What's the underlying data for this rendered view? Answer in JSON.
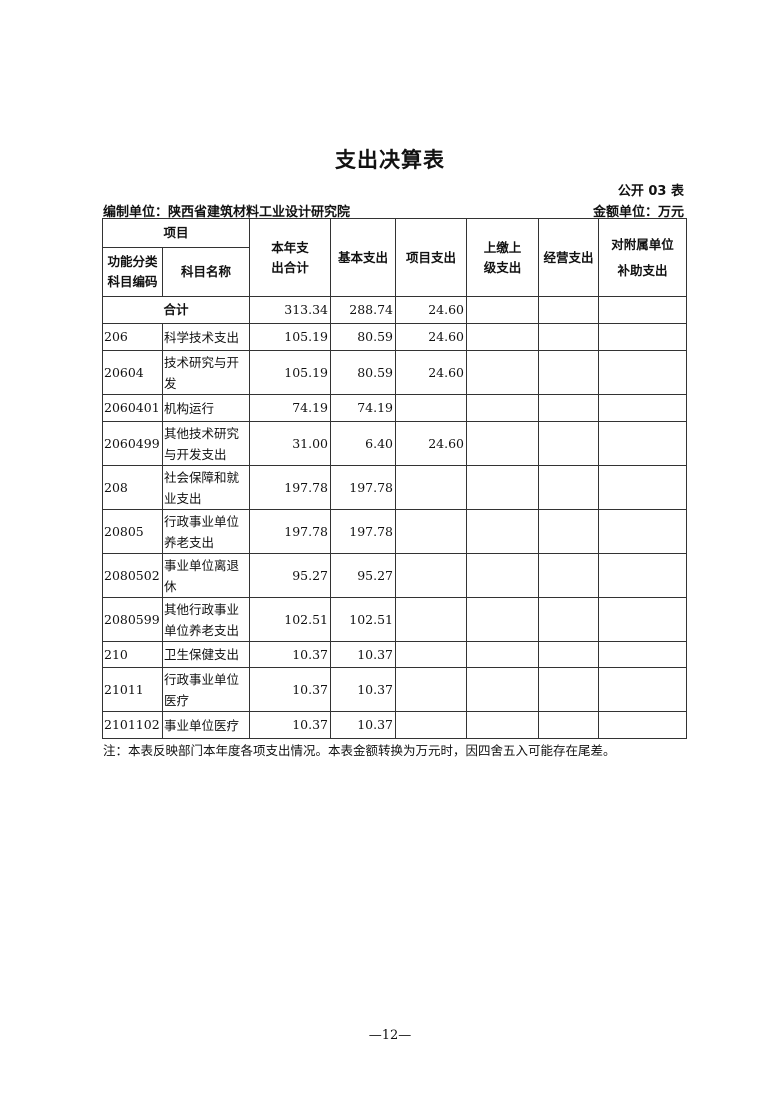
{
  "title": "支出决算表",
  "table_no": "公开 03 表",
  "compiler": "编制单位：陕西省建筑材料工业设计研究院",
  "unit": "金额单位：万元",
  "headers": {
    "item": "项目",
    "code": "功能分类科目编码",
    "name": "科目名称",
    "total": "本年支出合计",
    "basic": "基本支出",
    "project": "项目支出",
    "upper": "上缴上级支出",
    "business": "经营支出",
    "subsidy": "对附属单位补助支出"
  },
  "total_row": {
    "label": "合计",
    "total": "313.34",
    "basic": "288.74",
    "project": "24.60",
    "upper": "",
    "business": "",
    "subsidy": ""
  },
  "rows": [
    {
      "code": "206",
      "name": "科学技术支出",
      "total": "105.19",
      "basic": "80.59",
      "project": "24.60",
      "upper": "",
      "business": "",
      "subsidy": ""
    },
    {
      "code": "20604",
      "name": "技术研究与开发",
      "total": "105.19",
      "basic": "80.59",
      "project": "24.60",
      "upper": "",
      "business": "",
      "subsidy": ""
    },
    {
      "code": "2060401",
      "name": "机构运行",
      "total": "74.19",
      "basic": "74.19",
      "project": "",
      "upper": "",
      "business": "",
      "subsidy": ""
    },
    {
      "code": "2060499",
      "name": "其他技术研究与开发支出",
      "total": "31.00",
      "basic": "6.40",
      "project": "24.60",
      "upper": "",
      "business": "",
      "subsidy": ""
    },
    {
      "code": "208",
      "name": "社会保障和就业支出",
      "total": "197.78",
      "basic": "197.78",
      "project": "",
      "upper": "",
      "business": "",
      "subsidy": ""
    },
    {
      "code": "20805",
      "name": "行政事业单位养老支出",
      "total": "197.78",
      "basic": "197.78",
      "project": "",
      "upper": "",
      "business": "",
      "subsidy": ""
    },
    {
      "code": "2080502",
      "name": "事业单位离退休",
      "total": "95.27",
      "basic": "95.27",
      "project": "",
      "upper": "",
      "business": "",
      "subsidy": ""
    },
    {
      "code": "2080599",
      "name": "其他行政事业单位养老支出",
      "total": "102.51",
      "basic": "102.51",
      "project": "",
      "upper": "",
      "business": "",
      "subsidy": ""
    },
    {
      "code": "210",
      "name": "卫生保健支出",
      "total": "10.37",
      "basic": "10.37",
      "project": "",
      "upper": "",
      "business": "",
      "subsidy": ""
    },
    {
      "code": "21011",
      "name": "行政事业单位医疗",
      "total": "10.37",
      "basic": "10.37",
      "project": "",
      "upper": "",
      "business": "",
      "subsidy": ""
    },
    {
      "code": "2101102",
      "name": "事业单位医疗",
      "total": "10.37",
      "basic": "10.37",
      "project": "",
      "upper": "",
      "business": "",
      "subsidy": ""
    }
  ],
  "note": "注：本表反映部门本年度各项支出情况。本表金额转换为万元时，因四舍五入可能存在尾差。",
  "page_number": "—12—"
}
